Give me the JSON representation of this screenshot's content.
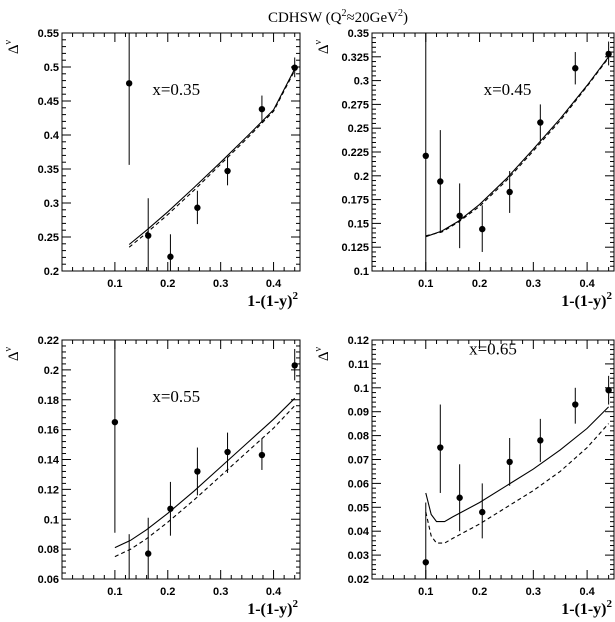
{
  "title": {
    "main": "CDHSW (Q",
    "sup": "2",
    "rest": "≈20GeV",
    "sup2": "2",
    "end": ")"
  },
  "chart_data": [
    {
      "type": "scatter",
      "annotation": "x=0.35",
      "xlabel": {
        "main": "1-(1-y)",
        "sup": "2"
      },
      "ylabel": {
        "main": "Δ",
        "sup": "ν"
      },
      "xlim": [
        0,
        0.45
      ],
      "ylim": [
        0.2,
        0.55
      ],
      "xticks": [
        0.1,
        0.2,
        0.3,
        0.4
      ],
      "xtick_labels": [
        "0.1",
        "0.2",
        "0.3",
        "0.4"
      ],
      "yticks": [
        0.2,
        0.25,
        0.3,
        0.35,
        0.4,
        0.45,
        0.5,
        0.55
      ],
      "ytick_labels": [
        "0.2",
        "0.25",
        "0.3",
        "0.35",
        "0.4",
        "0.45",
        "0.5",
        "0.55"
      ],
      "points": [
        {
          "x": 0.127,
          "y": 0.476,
          "ylo": 0.356,
          "yhi": 0.55
        },
        {
          "x": 0.163,
          "y": 0.252,
          "ylo": 0.2,
          "yhi": 0.307
        },
        {
          "x": 0.205,
          "y": 0.221,
          "ylo": 0.2,
          "yhi": 0.254
        },
        {
          "x": 0.256,
          "y": 0.293,
          "ylo": 0.269,
          "yhi": 0.318
        },
        {
          "x": 0.313,
          "y": 0.347,
          "ylo": 0.326,
          "yhi": 0.368
        },
        {
          "x": 0.378,
          "y": 0.438,
          "ylo": 0.418,
          "yhi": 0.458
        },
        {
          "x": 0.44,
          "y": 0.499,
          "ylo": 0.485,
          "yhi": 0.514
        }
      ],
      "series": [
        {
          "style": "solid",
          "x": [
            0.127,
            0.16,
            0.2,
            0.25,
            0.3,
            0.35,
            0.4,
            0.44
          ],
          "y": [
            0.239,
            0.26,
            0.287,
            0.323,
            0.36,
            0.398,
            0.437,
            0.497
          ]
        },
        {
          "style": "dashed",
          "x": [
            0.127,
            0.16,
            0.2,
            0.25,
            0.3,
            0.35,
            0.4,
            0.44
          ],
          "y": [
            0.235,
            0.256,
            0.283,
            0.319,
            0.357,
            0.395,
            0.435,
            0.495
          ]
        }
      ]
    },
    {
      "type": "scatter",
      "annotation": "x=0.45",
      "xlabel": {
        "main": "1-(1-y)",
        "sup": "2"
      },
      "ylabel": {
        "main": "Δ",
        "sup": "ν"
      },
      "xlim": [
        0,
        0.45
      ],
      "ylim": [
        0.1,
        0.35
      ],
      "xticks": [
        0.1,
        0.2,
        0.3,
        0.4
      ],
      "xtick_labels": [
        "0.1",
        "0.2",
        "0.3",
        "0.4"
      ],
      "yticks": [
        0.1,
        0.125,
        0.15,
        0.175,
        0.2,
        0.225,
        0.25,
        0.275,
        0.3,
        0.325,
        0.35
      ],
      "ytick_labels": [
        "0.1",
        "0.125",
        "0.15",
        "0.175",
        "0.2",
        "0.225",
        "0.25",
        "0.275",
        "0.3",
        "0.325",
        "0.35"
      ],
      "points": [
        {
          "x": 0.1,
          "y": 0.221,
          "ylo": 0.1,
          "yhi": 0.35
        },
        {
          "x": 0.127,
          "y": 0.194,
          "ylo": 0.14,
          "yhi": 0.248
        },
        {
          "x": 0.163,
          "y": 0.158,
          "ylo": 0.124,
          "yhi": 0.192
        },
        {
          "x": 0.205,
          "y": 0.144,
          "ylo": 0.12,
          "yhi": 0.169
        },
        {
          "x": 0.256,
          "y": 0.183,
          "ylo": 0.161,
          "yhi": 0.205
        },
        {
          "x": 0.313,
          "y": 0.256,
          "ylo": 0.237,
          "yhi": 0.275
        },
        {
          "x": 0.378,
          "y": 0.313,
          "ylo": 0.296,
          "yhi": 0.33
        },
        {
          "x": 0.44,
          "y": 0.328,
          "ylo": 0.316,
          "yhi": 0.341
        }
      ],
      "series": [
        {
          "style": "solid",
          "x": [
            0.1,
            0.13,
            0.16,
            0.2,
            0.25,
            0.3,
            0.35,
            0.4,
            0.44
          ],
          "y": [
            0.136,
            0.142,
            0.152,
            0.17,
            0.197,
            0.228,
            0.26,
            0.295,
            0.325
          ]
        },
        {
          "style": "dashed",
          "x": [
            0.1,
            0.13,
            0.16,
            0.2,
            0.25,
            0.3,
            0.35,
            0.4,
            0.44
          ],
          "y": [
            0.137,
            0.141,
            0.151,
            0.168,
            0.195,
            0.226,
            0.258,
            0.294,
            0.324
          ]
        }
      ]
    },
    {
      "type": "scatter",
      "annotation": "x=0.55",
      "xlabel": {
        "main": "1-(1-y)",
        "sup": "2"
      },
      "ylabel": {
        "main": "Δ",
        "sup": "ν"
      },
      "xlim": [
        0,
        0.45
      ],
      "ylim": [
        0.06,
        0.22
      ],
      "xticks": [
        0.1,
        0.2,
        0.3,
        0.4
      ],
      "xtick_labels": [
        "0.1",
        "0.2",
        "0.3",
        "0.4"
      ],
      "yticks": [
        0.06,
        0.08,
        0.1,
        0.12,
        0.14,
        0.16,
        0.18,
        0.2,
        0.22
      ],
      "ytick_labels": [
        "0.06",
        "0.08",
        "0.1",
        "0.12",
        "0.14",
        "0.16",
        "0.18",
        "0.2",
        "0.22"
      ],
      "points": [
        {
          "x": 0.1,
          "y": 0.165,
          "ylo": 0.091,
          "yhi": 0.22
        },
        {
          "x": 0.127,
          "y": 0.06,
          "ylo": 0.06,
          "yhi": 0.09
        },
        {
          "x": 0.163,
          "y": 0.077,
          "ylo": 0.06,
          "yhi": 0.101
        },
        {
          "x": 0.205,
          "y": 0.107,
          "ylo": 0.089,
          "yhi": 0.125
        },
        {
          "x": 0.256,
          "y": 0.132,
          "ylo": 0.116,
          "yhi": 0.148
        },
        {
          "x": 0.313,
          "y": 0.145,
          "ylo": 0.131,
          "yhi": 0.158
        },
        {
          "x": 0.378,
          "y": 0.143,
          "ylo": 0.133,
          "yhi": 0.154
        },
        {
          "x": 0.44,
          "y": 0.203,
          "ylo": 0.193,
          "yhi": 0.214
        }
      ],
      "series": [
        {
          "style": "solid",
          "x": [
            0.1,
            0.13,
            0.16,
            0.2,
            0.25,
            0.3,
            0.35,
            0.4,
            0.44
          ],
          "y": [
            0.081,
            0.086,
            0.093,
            0.104,
            0.119,
            0.135,
            0.151,
            0.167,
            0.181
          ]
        },
        {
          "style": "dashed",
          "x": [
            0.1,
            0.13,
            0.16,
            0.2,
            0.25,
            0.3,
            0.35,
            0.4,
            0.44
          ],
          "y": [
            0.075,
            0.08,
            0.087,
            0.098,
            0.113,
            0.129,
            0.145,
            0.161,
            0.176
          ]
        }
      ]
    },
    {
      "type": "scatter",
      "annotation": "x=0.65",
      "xlabel": {
        "main": "1-(1-y)",
        "sup": "2"
      },
      "ylabel": {
        "main": "Δ",
        "sup": "ν"
      },
      "xlim": [
        0,
        0.45
      ],
      "ylim": [
        0.02,
        0.12
      ],
      "xticks": [
        0.1,
        0.2,
        0.3,
        0.4
      ],
      "xtick_labels": [
        "0.1",
        "0.2",
        "0.3",
        "0.4"
      ],
      "yticks": [
        0.02,
        0.03,
        0.04,
        0.05,
        0.06,
        0.07,
        0.08,
        0.09,
        0.1,
        0.11,
        0.12
      ],
      "ytick_labels": [
        "0.02",
        "0.03",
        "0.04",
        "0.05",
        "0.06",
        "0.07",
        "0.08",
        "0.09",
        "0.1",
        "0.11",
        "0.12"
      ],
      "points": [
        {
          "x": 0.1,
          "y": 0.027,
          "ylo": 0.02,
          "yhi": 0.052
        },
        {
          "x": 0.127,
          "y": 0.075,
          "ylo": 0.056,
          "yhi": 0.093
        },
        {
          "x": 0.163,
          "y": 0.054,
          "ylo": 0.04,
          "yhi": 0.068
        },
        {
          "x": 0.205,
          "y": 0.048,
          "ylo": 0.037,
          "yhi": 0.06
        },
        {
          "x": 0.256,
          "y": 0.069,
          "ylo": 0.059,
          "yhi": 0.079
        },
        {
          "x": 0.313,
          "y": 0.078,
          "ylo": 0.069,
          "yhi": 0.087
        },
        {
          "x": 0.378,
          "y": 0.093,
          "ylo": 0.085,
          "yhi": 0.1
        },
        {
          "x": 0.44,
          "y": 0.099,
          "ylo": 0.093,
          "yhi": 0.105
        }
      ],
      "series": [
        {
          "style": "solid",
          "x": [
            0.1,
            0.11,
            0.12,
            0.135,
            0.15,
            0.2,
            0.25,
            0.3,
            0.35,
            0.4,
            0.44
          ],
          "y": [
            0.056,
            0.047,
            0.044,
            0.044,
            0.046,
            0.052,
            0.059,
            0.066,
            0.074,
            0.083,
            0.092
          ]
        },
        {
          "style": "dashed",
          "x": [
            0.1,
            0.11,
            0.12,
            0.135,
            0.15,
            0.2,
            0.25,
            0.3,
            0.35,
            0.4,
            0.44
          ],
          "y": [
            0.048,
            0.038,
            0.035,
            0.035,
            0.037,
            0.043,
            0.05,
            0.057,
            0.065,
            0.075,
            0.085
          ]
        }
      ]
    }
  ]
}
